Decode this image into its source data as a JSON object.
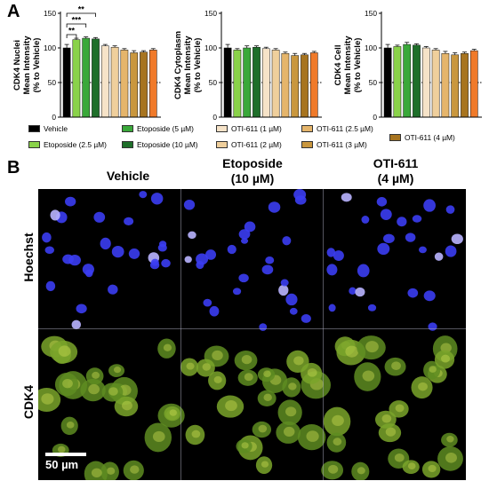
{
  "panels": {
    "a": "A",
    "b": "B"
  },
  "chart_data": [
    {
      "type": "bar",
      "ylabel": [
        "CDK4 Nuclei",
        "Mean Intensity",
        "(% to Vehicle)"
      ],
      "ylim": [
        0,
        150
      ],
      "yticks": [
        "0",
        "50",
        "100",
        "150"
      ],
      "reference_line": 50,
      "values": [
        100,
        112,
        114,
        113,
        103,
        101,
        97,
        93,
        94,
        97
      ],
      "errors": [
        5,
        2,
        2,
        2,
        2,
        2,
        2,
        3,
        2,
        2
      ],
      "significance": [
        {
          "label": "**",
          "from": 0,
          "to": 1
        },
        {
          "label": "***",
          "from": 0,
          "to": 2
        },
        {
          "label": "**",
          "from": 0,
          "to": 3
        }
      ]
    },
    {
      "type": "bar",
      "ylabel": [
        "CDK4 Cytoplasm",
        "Mean Intensity",
        "(% to Vehicle)"
      ],
      "ylim": [
        0,
        150
      ],
      "yticks": [
        "0",
        "50",
        "100",
        "150"
      ],
      "reference_line": 50,
      "values": [
        100,
        97,
        100,
        101,
        99,
        97,
        92,
        89,
        90,
        93
      ],
      "errors": [
        5,
        2,
        3,
        2,
        2,
        2,
        2,
        3,
        2,
        2
      ],
      "significance": []
    },
    {
      "type": "bar",
      "ylabel": [
        "CDK4 Cell",
        "Mean Intensity",
        "(% to Vehicle)"
      ],
      "ylim": [
        0,
        150
      ],
      "yticks": [
        "0",
        "50",
        "100",
        "150"
      ],
      "reference_line": 50,
      "values": [
        100,
        102,
        105,
        104,
        100,
        97,
        92,
        90,
        92,
        96
      ],
      "errors": [
        5,
        2,
        3,
        2,
        2,
        2,
        3,
        3,
        2,
        2
      ],
      "significance": []
    }
  ],
  "series": [
    {
      "name": "Vehicle",
      "color": "#000000"
    },
    {
      "name": "Etoposide (2.5 µM)",
      "color": "#8ad24a"
    },
    {
      "name": "Etoposide (5 µM)",
      "color": "#3aa83a"
    },
    {
      "name": "Etoposide (10 µM)",
      "color": "#1e6f2a"
    },
    {
      "name": "OTI-611 (1 µM)",
      "color": "#f6e3c8"
    },
    {
      "name": "OTI-611 (2 µM)",
      "color": "#efcf9c"
    },
    {
      "name": "OTI-611 (2.5 µM)",
      "color": "#e5b56b"
    },
    {
      "name": "OTI-611 (3 µM)",
      "color": "#c9973e"
    },
    {
      "name": "OTI-611 (4 µM)",
      "color": "#a7741f"
    },
    {
      "name": "",
      "color": "#f07a2a"
    }
  ],
  "microscopy": {
    "columns": [
      "Vehicle",
      "Etoposide\n(10 µM)",
      "OTI-611\n(4 µM)"
    ],
    "column_lines": [
      [
        "Vehicle"
      ],
      [
        "Etoposide",
        "(10 µM)"
      ],
      [
        "OTI-611",
        "(4 µM)"
      ]
    ],
    "rows": [
      "Hoechst",
      "CDK4"
    ],
    "scale_bar": "50 µm"
  }
}
